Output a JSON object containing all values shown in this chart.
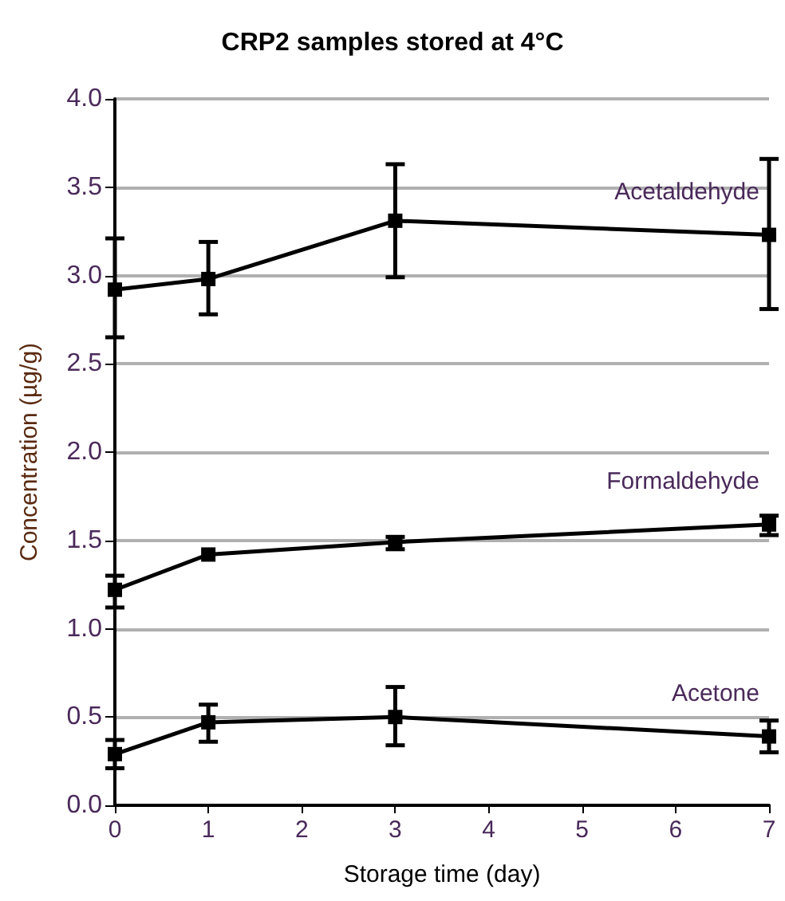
{
  "chart_data": {
    "type": "line",
    "title": "CRP2 samples stored at 4°C",
    "xlabel": "Storage time (day)",
    "ylabel": "Concentration (µg/g)",
    "x": [
      0,
      1,
      3,
      7
    ],
    "xlim": [
      0,
      7
    ],
    "xticks": [
      0,
      1,
      2,
      3,
      4,
      5,
      6,
      7
    ],
    "ylim": [
      0,
      4
    ],
    "yticks": [
      {
        "value": 0,
        "label": "0.0"
      },
      0.5,
      {
        "value": 1,
        "label": "1.0"
      },
      1.5,
      {
        "value": 2,
        "label": "2.0"
      },
      2.5,
      {
        "value": 3,
        "label": "3.0"
      },
      3.5,
      {
        "value": 4,
        "label": "4.0"
      }
    ],
    "grid": "y",
    "legend": false,
    "marker": "square",
    "line_style": "solid",
    "series": [
      {
        "name": "Acetaldehyde",
        "color": "#000000",
        "values": [
          2.92,
          2.98,
          3.31,
          3.23
        ],
        "errors": [
          [
            2.65,
            3.21
          ],
          [
            2.78,
            3.19
          ],
          [
            2.99,
            3.63
          ],
          [
            2.81,
            3.66
          ]
        ]
      },
      {
        "name": "Formaldehyde",
        "color": "#000000",
        "values": [
          1.22,
          1.42,
          1.49,
          1.59
        ],
        "errors": [
          [
            1.12,
            1.3
          ],
          null,
          [
            1.45,
            1.52
          ],
          [
            1.53,
            1.64
          ]
        ]
      },
      {
        "name": "Acetone",
        "color": "#000000",
        "values": [
          0.29,
          0.47,
          0.5,
          0.39
        ],
        "errors": [
          [
            0.21,
            0.37
          ],
          [
            0.36,
            0.57
          ],
          [
            0.34,
            0.67
          ],
          [
            0.3,
            0.48
          ]
        ]
      }
    ]
  }
}
